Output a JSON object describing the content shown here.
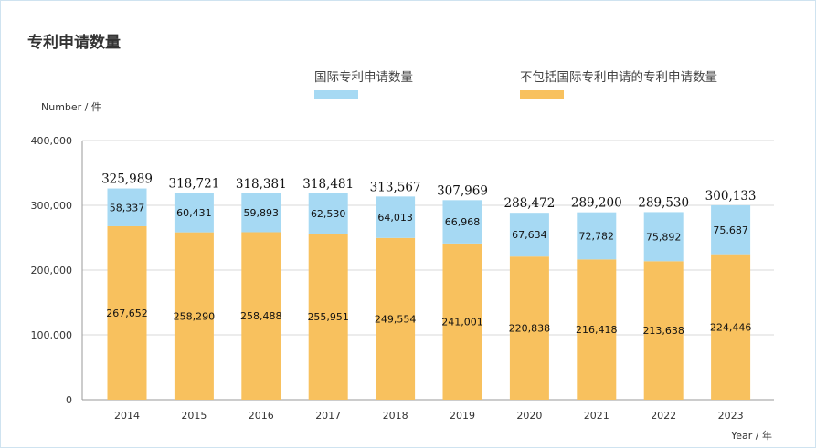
{
  "chart_data": {
    "type": "bar",
    "stacked": true,
    "title": "专利申请数量",
    "ylabel": "Number / 件",
    "xlabel": "Year / 年",
    "ylim": [
      0,
      400000
    ],
    "yticks": [
      0,
      100000,
      200000,
      300000,
      400000
    ],
    "ytick_labels": [
      "0",
      "100,000",
      "200,000",
      "300,000",
      "400,000"
    ],
    "grid": true,
    "legend_position": "top",
    "categories": [
      "2014",
      "2015",
      "2016",
      "2017",
      "2018",
      "2019",
      "2020",
      "2021",
      "2022",
      "2023"
    ],
    "series": [
      {
        "name": "不包括国际专利申请的专利申请数量",
        "color": "#f8c15e",
        "values": [
          267652,
          258290,
          258488,
          255951,
          249554,
          241001,
          220838,
          216418,
          213638,
          224446
        ],
        "labels": [
          "267,652",
          "258,290",
          "258,488",
          "255,951",
          "249,554",
          "241,001",
          "220,838",
          "216,418",
          "213,638",
          "224,446"
        ]
      },
      {
        "name": "国际专利申请数量",
        "color": "#a6d9f3",
        "values": [
          58337,
          60431,
          59893,
          62530,
          64013,
          66968,
          67634,
          72782,
          75892,
          75687
        ],
        "labels": [
          "58,337",
          "60,431",
          "59,893",
          "62,530",
          "64,013",
          "66,968",
          "67,634",
          "72,782",
          "75,892",
          "75,687"
        ]
      }
    ],
    "totals": [
      325989,
      318721,
      318381,
      318481,
      313567,
      307969,
      288472,
      289200,
      289530,
      300133
    ],
    "total_labels": [
      "325,989",
      "318,721",
      "318,381",
      "318,481",
      "313,567",
      "307,969",
      "288,472",
      "289,200",
      "289,530",
      "300,133"
    ]
  }
}
